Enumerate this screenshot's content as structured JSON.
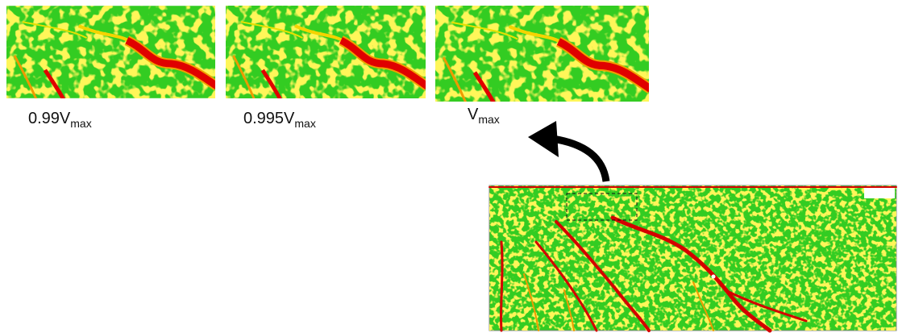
{
  "panels": [
    {
      "label": {
        "main": "0.99V",
        "sub": "max"
      }
    },
    {
      "label": {
        "main": "0.995V",
        "sub": "max"
      }
    },
    {
      "label": {
        "main": "V",
        "sub": "max"
      }
    }
  ]
}
